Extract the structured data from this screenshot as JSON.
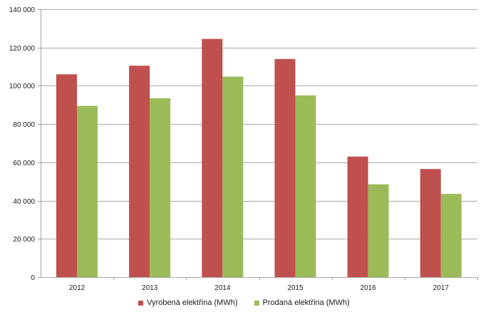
{
  "chart_data": {
    "type": "bar",
    "categories": [
      "2012",
      "2013",
      "2014",
      "2015",
      "2016",
      "2017"
    ],
    "series": [
      {
        "name": "Vyrobená elektřina (MWh)",
        "color": "#c0504d",
        "values": [
          106000,
          110500,
          124500,
          114000,
          63000,
          56500
        ]
      },
      {
        "name": "Prodaná elektřina (MWh)",
        "color": "#9bbb59",
        "values": [
          89500,
          93500,
          104800,
          95000,
          48500,
          43500
        ]
      }
    ],
    "ylim": [
      0,
      140000
    ],
    "yticks": [
      0,
      20000,
      40000,
      60000,
      80000,
      100000,
      120000,
      140000
    ],
    "ytick_labels": [
      "0",
      "20 000",
      "40 000",
      "60 000",
      "80 000",
      "100 000",
      "120 000",
      "140 000"
    ],
    "grid": true,
    "legend_position": "bottom"
  }
}
